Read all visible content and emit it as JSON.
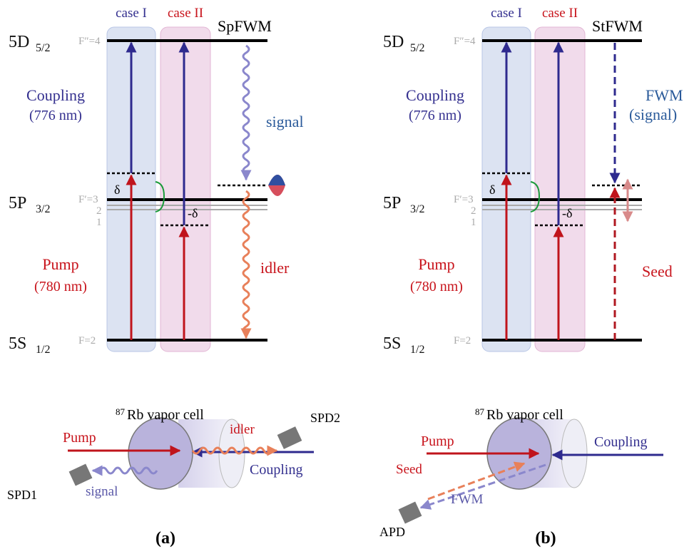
{
  "panels": [
    {
      "label": "(a)",
      "process": "SpFWM",
      "cases": [
        "case I",
        "case II"
      ],
      "levels": [
        {
          "name": "5D",
          "sub": "5/2",
          "hyperfine": "F″=4"
        },
        {
          "name": "5P",
          "sub": "3/2",
          "hyperfine": "F′=3"
        },
        {
          "name": "5S",
          "sub": "1/2",
          "hyperfine": "F=2"
        }
      ],
      "sublevels": [
        "2",
        "1"
      ],
      "detuning": [
        "δ",
        "-δ"
      ],
      "coupling": [
        "Coupling",
        "(776 nm)"
      ],
      "pump": [
        "Pump",
        "(780 nm)"
      ],
      "transitions": [
        "signal",
        "idler"
      ],
      "cell": {
        "isotope": "87",
        "name": "Rb vapor cell"
      },
      "beams": [
        "Pump",
        "idler",
        "SPD2",
        "Coupling",
        "SPD1",
        "signal"
      ]
    },
    {
      "label": "(b)",
      "process": "StFWM",
      "cases": [
        "case I",
        "case II"
      ],
      "levels": [
        {
          "name": "5D",
          "sub": "5/2",
          "hyperfine": "F″=4"
        },
        {
          "name": "5P",
          "sub": "3/2",
          "hyperfine": "F′=3"
        },
        {
          "name": "5S",
          "sub": "1/2",
          "hyperfine": "F=2"
        }
      ],
      "sublevels": [
        "2",
        "1"
      ],
      "detuning": [
        "δ",
        "-δ"
      ],
      "coupling": [
        "Coupling",
        "(776 nm)"
      ],
      "pump": [
        "Pump",
        "(780 nm)"
      ],
      "transitions": [
        "FWM",
        "(signal)",
        "Seed"
      ],
      "cell": {
        "isotope": "87",
        "name": "Rb vapor cell"
      },
      "beams": [
        "Pump",
        "Coupling",
        "Seed",
        "FWM",
        "APD"
      ]
    }
  ]
}
